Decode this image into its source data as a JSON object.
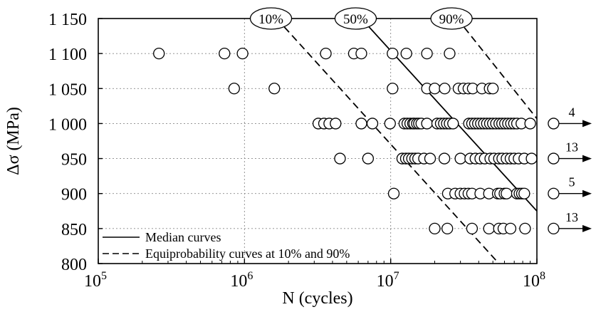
{
  "chart_data": {
    "type": "scatter",
    "x_scale": "log",
    "xlim": [
      100000,
      100000000
    ],
    "ylim": [
      800,
      1150
    ],
    "xlabel": "N (cycles)",
    "ylabel": "Δσ (MPa)",
    "x_ticks": [
      {
        "value": 100000,
        "base": "10",
        "exp": "5"
      },
      {
        "value": 1000000,
        "base": "10",
        "exp": "6"
      },
      {
        "value": 10000000,
        "base": "10",
        "exp": "7"
      },
      {
        "value": 100000000,
        "base": "10",
        "exp": "8"
      }
    ],
    "y_ticks": [
      {
        "value": 800,
        "label": "800"
      },
      {
        "value": 850,
        "label": "850"
      },
      {
        "value": 900,
        "label": "900"
      },
      {
        "value": 950,
        "label": "950"
      },
      {
        "value": 1000,
        "label": "1 000"
      },
      {
        "value": 1050,
        "label": "1 050"
      },
      {
        "value": 1100,
        "label": "1 100"
      },
      {
        "value": 1150,
        "label": "1 150"
      }
    ],
    "grid": true,
    "series": [
      {
        "name": "",
        "marker": "open-circle",
        "points": [
          {
            "y": 1100,
            "x": [
              260000,
              730000,
              970000,
              3600000,
              5600000,
              6300000,
              10300000,
              12800000,
              17700000,
              25300000
            ]
          },
          {
            "y": 1050,
            "x": [
              850000,
              1600000,
              10300000,
              17700000,
              20000000,
              23400000,
              29100000,
              31500000,
              34000000,
              36400000,
              42100000,
              47500000,
              50000000
            ]
          },
          {
            "y": 1000,
            "x": [
              3200000,
              3500000,
              3800000,
              4200000,
              6300000,
              7500000,
              9900000,
              12400000,
              13000000,
              13600000,
              14200000,
              14500000,
              15100000,
              15600000,
              16200000,
              17700000,
              20800000,
              22000000,
              23100000,
              24200000,
              25300000,
              26700000,
              34300000,
              36000000,
              37700000,
              39500000,
              41400000,
              43400000,
              45500000,
              47700000,
              50000000,
              52500000,
              55300000,
              57800000,
              60500000,
              63400000,
              66500000,
              69700000,
              73100000,
              78300000,
              90000000
            ]
          },
          {
            "y": 950,
            "x": [
              4500000,
              7000000,
              12000000,
              12700000,
              13300000,
              14000000,
              14700000,
              15400000,
              16900000,
              18600000,
              23300000,
              30000000,
              35000000,
              38000000,
              41000000,
              44000000,
              48000000,
              51000000,
              55000000,
              58000000,
              62000000,
              66000000,
              70000000,
              75000000,
              82000000,
              92000000
            ]
          },
          {
            "y": 900,
            "x": [
              10500000,
              24600000,
              27600000,
              30000000,
              32000000,
              34000000,
              36000000,
              41000000,
              47000000,
              54000000,
              56000000,
              60000000,
              62000000,
              73000000,
              76000000,
              79000000,
              82000000
            ]
          },
          {
            "y": 850,
            "x": [
              20000000,
              24400000,
              36000000,
              47000000,
              55000000,
              59000000,
              66000000,
              83000000
            ]
          }
        ]
      }
    ],
    "runouts": [
      {
        "y": 1000,
        "x": 130000000,
        "count": "4"
      },
      {
        "y": 950,
        "x": 130000000,
        "count": "13"
      },
      {
        "y": 900,
        "x": 130000000,
        "count": "5"
      },
      {
        "y": 850,
        "x": 130000000,
        "count": "13"
      }
    ],
    "curves": [
      {
        "name": "Median curves",
        "label": "50%",
        "style": "solid",
        "points": [
          [
            6300000,
            1150
          ],
          [
            100000000,
            875
          ]
        ]
      },
      {
        "name": "Equiprobability curves at 10% and 90%",
        "label": "10%",
        "style": "dashed",
        "points": [
          [
            1660000,
            1150
          ],
          [
            55000000,
            800
          ]
        ]
      },
      {
        "label": "90%",
        "style": "dashed",
        "points": [
          [
            28500000,
            1150
          ],
          [
            100000000,
            1007
          ]
        ]
      }
    ],
    "legend": {
      "position": "bottom-left",
      "entries": [
        {
          "label": "Median curves",
          "style": "solid"
        },
        {
          "label": "Equiprobability curves at 10% and 90%",
          "style": "dashed"
        }
      ]
    }
  }
}
